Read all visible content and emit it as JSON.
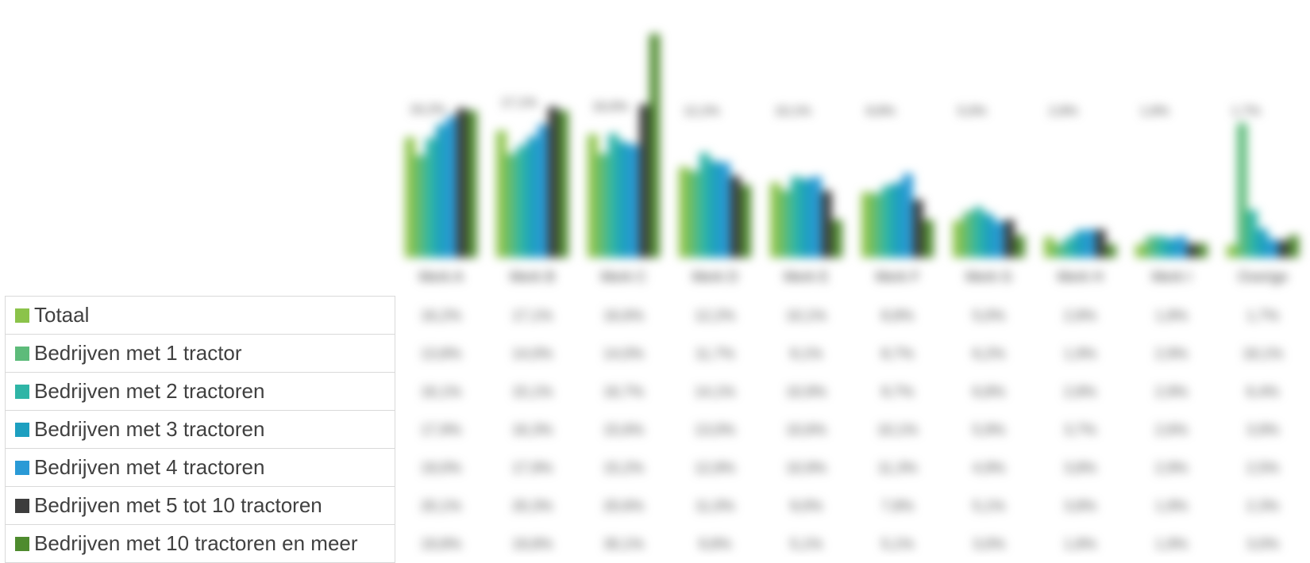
{
  "chart_data": {
    "type": "bar",
    "categories": [
      "Merk A",
      "Merk B",
      "Merk C",
      "Merk D",
      "Merk E",
      "Merk F",
      "Merk G",
      "Merk H",
      "Merk I",
      "Overige"
    ],
    "series": [
      {
        "name": "Totaal",
        "color": "#8bc34a",
        "values": [
          16.2,
          17.1,
          16.6,
          12.2,
          10.1,
          8.8,
          5.0,
          2.8,
          1.8,
          1.7
        ]
      },
      {
        "name": "Bedrijven met 1 tractor",
        "color": "#5dbb7a",
        "values": [
          13.8,
          14.0,
          14.0,
          11.7,
          9.1,
          8.7,
          6.2,
          1.9,
          2.9,
          18.1
        ]
      },
      {
        "name": "Bedrijven met 2 tractoren",
        "color": "#2fb5a6",
        "values": [
          16.1,
          15.1,
          16.7,
          14.1,
          10.9,
          9.7,
          6.8,
          2.8,
          2.9,
          6.4
        ]
      },
      {
        "name": "Bedrijven met 3 tractoren",
        "color": "#1d9fc0",
        "values": [
          17.9,
          16.3,
          15.6,
          13.0,
          10.6,
          10.1,
          5.9,
          3.7,
          2.6,
          3.9
        ]
      },
      {
        "name": "Bedrijven met 4 tractoren",
        "color": "#2a9ad6",
        "values": [
          19.0,
          17.9,
          15.2,
          12.8,
          10.9,
          11.3,
          4.9,
          3.8,
          2.9,
          2.5
        ]
      },
      {
        "name": "Bedrijven met 5 tot 10 tractoren",
        "color": "#3d3d3d",
        "values": [
          20.1,
          20.3,
          20.6,
          11.0,
          9.0,
          7.8,
          5.1,
          3.8,
          1.9,
          2.3
        ]
      },
      {
        "name": "Bedrijven met 10 tractoren en meer",
        "color": "#4e8b2e",
        "values": [
          19.8,
          19.8,
          30.1,
          9.8,
          5.1,
          5.1,
          3.0,
          1.8,
          1.9,
          3.0
        ]
      }
    ],
    "data_labels": [
      "16,2%",
      "17,1%",
      "16,6%",
      "12,2%",
      "10,1%",
      "8,8%",
      "5,0%",
      "2,8%",
      "1,8%",
      "1,7%"
    ],
    "ylim": [
      0,
      32
    ],
    "title": "",
    "xlabel": "",
    "ylabel": "",
    "grid": false,
    "legend": "left-table"
  }
}
